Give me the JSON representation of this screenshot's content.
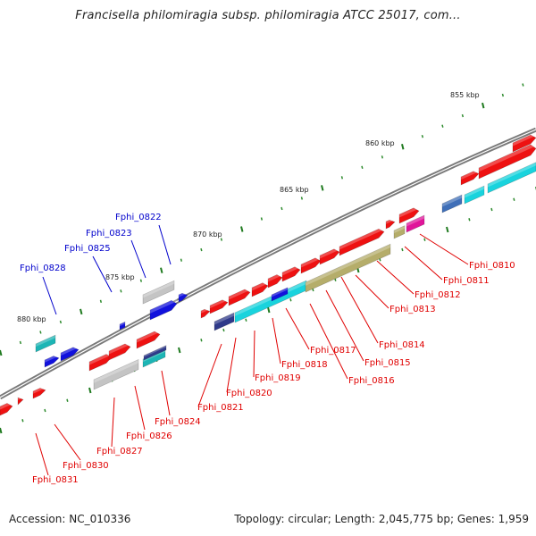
{
  "title": "Francisella philomiragia subsp. philomiragia ATCC 25017, com...",
  "footer": {
    "accession": "Accession: NC_010336",
    "topology": "Topology: circular; Length: 2,045,775 bp; Genes: 1,959"
  },
  "colors": {
    "backbone": "#7a7a7a",
    "tick_major": "#1f7a1f",
    "tick_minor": "#2e8b2e",
    "label_red": "#e00000",
    "label_blue": "#0000cc",
    "gene_red": "#ee1111",
    "gene_blue": "#1111dd",
    "gene_cyan": "#19d3dd",
    "gene_olive": "#b5ad6a",
    "gene_gray": "#c4c4c4",
    "gene_magenta": "#e0169a",
    "gene_navy": "#2f3a8a",
    "gene_steel": "#3f6fb8",
    "gene_teal": "#1db5b5"
  },
  "scale_labels": [
    "855 kbp",
    "860 kbp",
    "865 kbp",
    "870 kbp",
    "875 kbp",
    "880 kbp"
  ],
  "gene_labels": {
    "top": [
      "Fphi_0822",
      "Fphi_0823",
      "Fphi_0825",
      "Fphi_0828"
    ],
    "bottom": [
      "Fphi_0810",
      "Fphi_0811",
      "Fphi_0812",
      "Fphi_0813",
      "Fphi_0814",
      "Fphi_0815",
      "Fphi_0816",
      "Fphi_0817",
      "Fphi_0818",
      "Fphi_0819",
      "Fphi_0820",
      "Fphi_0821",
      "Fphi_0824",
      "Fphi_0826",
      "Fphi_0827",
      "Fphi_0830",
      "Fphi_0831"
    ]
  }
}
